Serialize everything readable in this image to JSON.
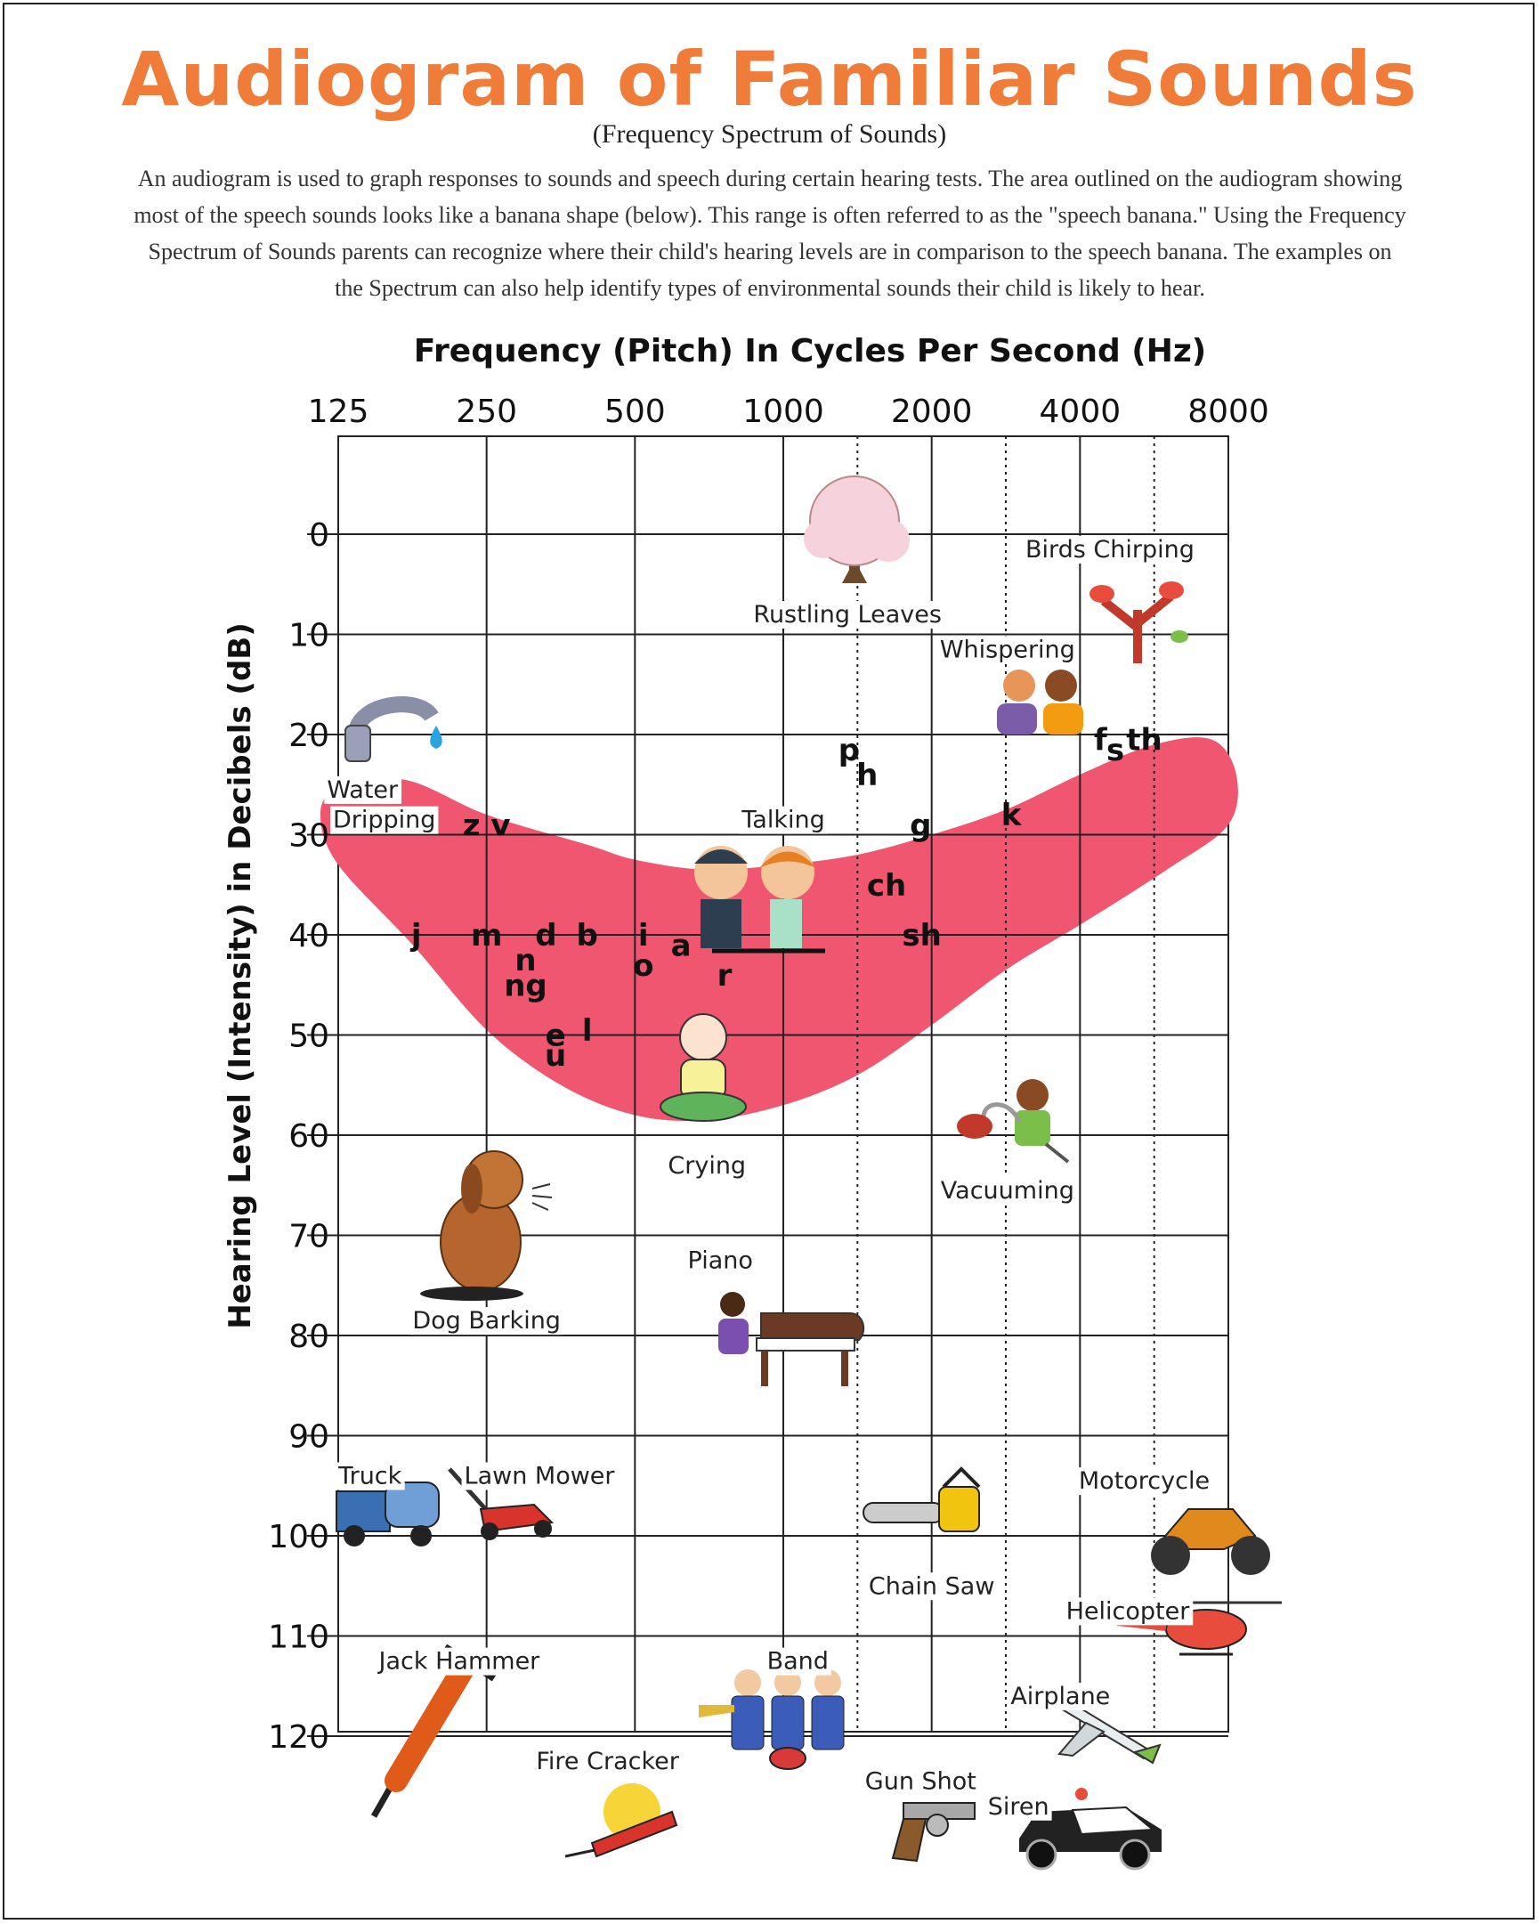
{
  "title": "Audiogram of Familiar Sounds",
  "subtitle": "(Frequency Spectrum of Sounds)",
  "intro": "An audiogram is used to graph responses to sounds and speech during certain hearing tests. The area outlined on the audiogram showing most of the speech sounds looks like a banana shape (below). This range is often referred to as the \"speech banana.\" Using the Frequency Spectrum of Sounds parents can recognize where their child's hearing levels are in comparison to the speech banana. The examples on the Spectrum can also help identify types of environmental sounds their child is likely to hear.",
  "axes": {
    "x_title": "Frequency (Pitch) In Cycles Per Second (Hz)",
    "y_title": "Hearing Level (Intensity) in Decibels (dB)",
    "x_ticks": [
      "125",
      "250",
      "500",
      "1000",
      "2000",
      "4000",
      "8000"
    ],
    "y_ticks": [
      "0",
      "10",
      "20",
      "30",
      "40",
      "50",
      "60",
      "70",
      "80",
      "90",
      "100",
      "110",
      "120"
    ]
  },
  "colors": {
    "title": "#f07c3a",
    "banana": "#f0566f",
    "grid": "#222222"
  },
  "speech_sounds": [
    {
      "text": "z v",
      "hz": 250,
      "db": 29
    },
    {
      "text": "j",
      "hz": 180,
      "db": 40
    },
    {
      "text": "m",
      "hz": 250,
      "db": 40
    },
    {
      "text": "d",
      "hz": 330,
      "db": 40
    },
    {
      "text": "b",
      "hz": 400,
      "db": 40
    },
    {
      "text": "n",
      "hz": 300,
      "db": 42.5
    },
    {
      "text": "ng",
      "hz": 300,
      "db": 45
    },
    {
      "text": "e",
      "hz": 345,
      "db": 50
    },
    {
      "text": "l",
      "hz": 400,
      "db": 49.5
    },
    {
      "text": "u",
      "hz": 345,
      "db": 52
    },
    {
      "text": "i",
      "hz": 520,
      "db": 40
    },
    {
      "text": "o",
      "hz": 520,
      "db": 43
    },
    {
      "text": "a",
      "hz": 620,
      "db": 41
    },
    {
      "text": "r",
      "hz": 760,
      "db": 44
    },
    {
      "text": "p",
      "hz": 1360,
      "db": 21.5
    },
    {
      "text": "h",
      "hz": 1480,
      "db": 24
    },
    {
      "text": "g",
      "hz": 1900,
      "db": 29
    },
    {
      "text": "ch",
      "hz": 1620,
      "db": 35
    },
    {
      "text": "sh",
      "hz": 1910,
      "db": 40
    },
    {
      "text": "k",
      "hz": 2900,
      "db": 28
    },
    {
      "text": "f",
      "hz": 4400,
      "db": 20.5
    },
    {
      "text": "s",
      "hz": 4720,
      "db": 21.5
    },
    {
      "text": "th",
      "hz": 5400,
      "db": 20.5
    }
  ],
  "sound_labels": [
    {
      "id": "rustling-leaves",
      "text": "Rustling Leaves",
      "hz": 1350,
      "db": 8,
      "icon": "tree-icon"
    },
    {
      "id": "birds-chirping",
      "text": "Birds Chirping",
      "hz": 4600,
      "db": 1.5,
      "icon": "birds-icon"
    },
    {
      "id": "whispering",
      "text": "Whispering",
      "hz": 2850,
      "db": 11.5,
      "icon": "whispering-people-icon"
    },
    {
      "id": "water-dripping-1",
      "text": "Water",
      "hz": 140,
      "db": 25.5,
      "icon": "faucet-icon"
    },
    {
      "id": "water-dripping-2",
      "text": "Dripping",
      "hz": 155,
      "db": 28.5,
      "icon": ""
    },
    {
      "id": "talking",
      "text": "Talking",
      "hz": 1000,
      "db": 28.5,
      "icon": "talking-people-icon"
    },
    {
      "id": "crying",
      "text": "Crying",
      "hz": 700,
      "db": 63,
      "icon": "crying-baby-icon"
    },
    {
      "id": "vacuuming",
      "text": "Vacuuming",
      "hz": 2850,
      "db": 65.5,
      "icon": "vacuum-icon"
    },
    {
      "id": "dog-barking",
      "text": "Dog Barking",
      "hz": 250,
      "db": 78.5,
      "icon": "dog-icon"
    },
    {
      "id": "piano",
      "text": "Piano",
      "hz": 745,
      "db": 72.5,
      "icon": "piano-icon"
    },
    {
      "id": "truck",
      "text": "Truck",
      "hz": 145,
      "db": 94,
      "icon": "truck-icon"
    },
    {
      "id": "lawn-mower",
      "text": "Lawn Mower",
      "hz": 320,
      "db": 94,
      "icon": "lawn-mower-icon"
    },
    {
      "id": "chain-saw",
      "text": "Chain Saw",
      "hz": 2000,
      "db": 105,
      "icon": "chainsaw-icon"
    },
    {
      "id": "motorcycle",
      "text": "Motorcycle",
      "hz": 5400,
      "db": 94.5,
      "icon": "motorcycle-icon"
    },
    {
      "id": "helicopter",
      "text": "Helicopter",
      "hz": 5000,
      "db": 107.5,
      "icon": "helicopter-icon"
    },
    {
      "id": "jack-hammer",
      "text": "Jack Hammer",
      "hz": 220,
      "db": 112.5,
      "icon": "jackhammer-icon"
    },
    {
      "id": "band",
      "text": "Band",
      "hz": 1070,
      "db": 112.5,
      "icon": "band-icon"
    },
    {
      "id": "airplane",
      "text": "Airplane",
      "hz": 3650,
      "db": 116,
      "icon": "airplane-icon"
    },
    {
      "id": "fire-cracker",
      "text": "Fire Cracker",
      "hz": 440,
      "db": 122.5,
      "icon": "firecracker-icon"
    },
    {
      "id": "gun-shot",
      "text": "Gun Shot",
      "hz": 1900,
      "db": 124.5,
      "icon": "gun-icon"
    },
    {
      "id": "siren",
      "text": "Siren",
      "hz": 3000,
      "db": 127,
      "icon": "police-car-icon"
    }
  ]
}
